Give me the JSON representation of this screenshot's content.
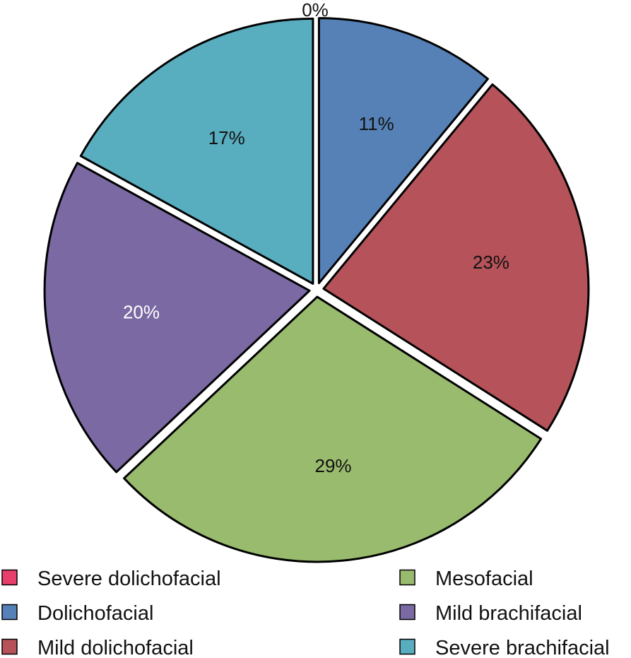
{
  "chart_data": {
    "type": "pie",
    "start_angle_deg": 0,
    "direction": "clockwise",
    "exploded": true,
    "slices": [
      {
        "label": "Severe dolichofacial",
        "value": 0,
        "display": "0%",
        "color": "#e83e6b",
        "text_color": "#111111"
      },
      {
        "label": "Dolichofacial",
        "value": 11,
        "display": "11%",
        "color": "#5581b7",
        "text_color": "#111111"
      },
      {
        "label": "Mild dolichofacial",
        "value": 23,
        "display": "23%",
        "color": "#b5525a",
        "text_color": "#111111"
      },
      {
        "label": "Mesofacial",
        "value": 29,
        "display": "29%",
        "color": "#99bb6e",
        "text_color": "#111111"
      },
      {
        "label": "Mild brachifacial",
        "value": 20,
        "display": "20%",
        "color": "#7b69a3",
        "text_color": "#ffffff"
      },
      {
        "label": "Severe brachifacial",
        "value": 17,
        "display": "17%",
        "color": "#58adbf",
        "text_color": "#111111"
      }
    ],
    "legend": {
      "placement": "bottom",
      "columns": 2,
      "entries": [
        "Severe dolichofacial",
        "Dolichofacial",
        "Mild dolichofacial",
        "Mesofacial",
        "Mild brachifacial",
        "Severe brachifacial"
      ]
    }
  }
}
